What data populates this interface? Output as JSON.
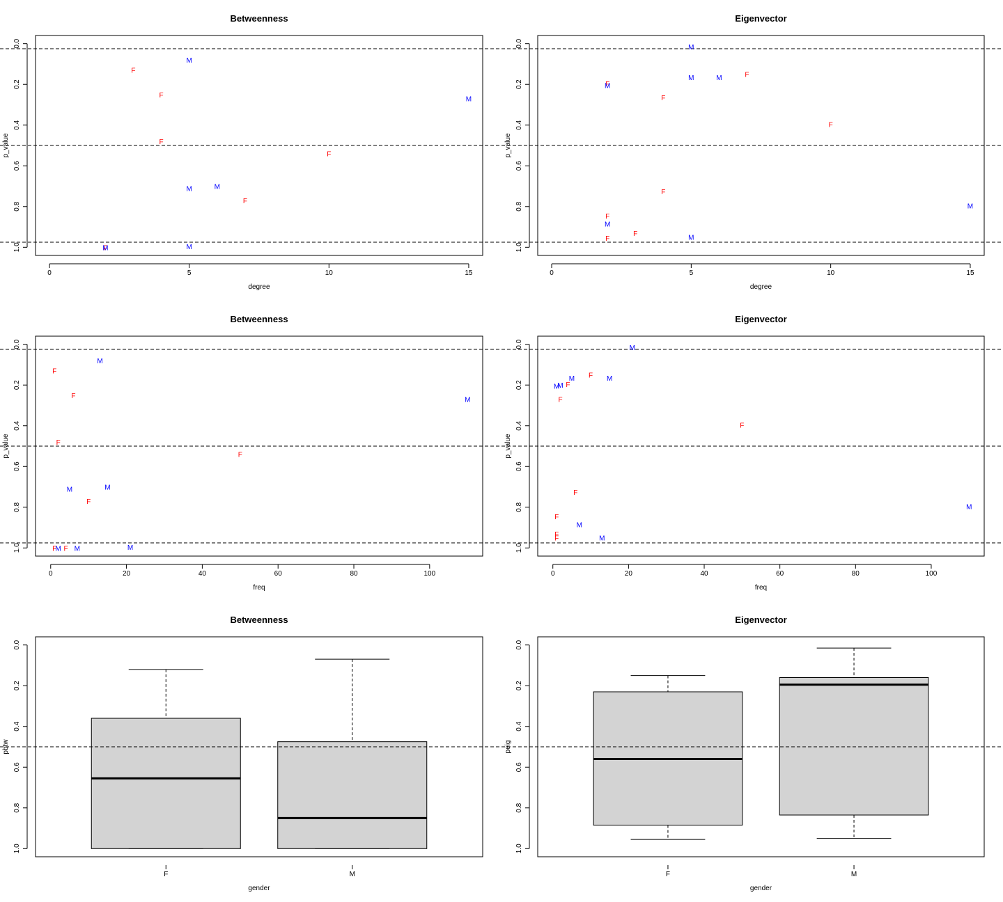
{
  "chart_data": [
    {
      "type": "scatter",
      "title": "Betweenness",
      "xlabel": "degree",
      "ylabel": "p_value",
      "xlim": [
        -0.5,
        15.5
      ],
      "ylim": [
        -0.04,
        1.04
      ],
      "y_reversed": true,
      "xticks": [
        0,
        5,
        10,
        15
      ],
      "yticks": [
        0.0,
        0.2,
        0.4,
        0.6,
        0.8,
        1.0
      ],
      "hlines": [
        0.025,
        0.5,
        0.975
      ],
      "points": [
        {
          "x": 5,
          "y": 0.08,
          "label": "M",
          "group": "M"
        },
        {
          "x": 3,
          "y": 0.13,
          "label": "F",
          "group": "F"
        },
        {
          "x": 4,
          "y": 0.25,
          "label": "F",
          "group": "F"
        },
        {
          "x": 15,
          "y": 0.27,
          "label": "M",
          "group": "M"
        },
        {
          "x": 4,
          "y": 0.48,
          "label": "F",
          "group": "F"
        },
        {
          "x": 10,
          "y": 0.54,
          "label": "F",
          "group": "F"
        },
        {
          "x": 6,
          "y": 0.7,
          "label": "M",
          "group": "M"
        },
        {
          "x": 5,
          "y": 0.71,
          "label": "M",
          "group": "M"
        },
        {
          "x": 7,
          "y": 0.77,
          "label": "F",
          "group": "F"
        },
        {
          "x": 2,
          "y": 1.0,
          "label": "F",
          "group": "F"
        },
        {
          "x": 2,
          "y": 1.0,
          "label": "M",
          "group": "M"
        },
        {
          "x": 5,
          "y": 0.995,
          "label": "M",
          "group": "M"
        }
      ]
    },
    {
      "type": "scatter",
      "title": "Eigenvector",
      "xlabel": "degree",
      "ylabel": "p_value",
      "xlim": [
        -0.5,
        15.5
      ],
      "ylim": [
        -0.04,
        1.04
      ],
      "y_reversed": true,
      "xticks": [
        0,
        5,
        10,
        15
      ],
      "yticks": [
        0.0,
        0.2,
        0.4,
        0.6,
        0.8,
        1.0
      ],
      "hlines": [
        0.025,
        0.5,
        0.975
      ],
      "points": [
        {
          "x": 5,
          "y": 0.015,
          "label": "M",
          "group": "M"
        },
        {
          "x": 7,
          "y": 0.15,
          "label": "F",
          "group": "F"
        },
        {
          "x": 5,
          "y": 0.165,
          "label": "M",
          "group": "M"
        },
        {
          "x": 6,
          "y": 0.165,
          "label": "M",
          "group": "M"
        },
        {
          "x": 2,
          "y": 0.195,
          "label": "F",
          "group": "F"
        },
        {
          "x": 2,
          "y": 0.205,
          "label": "M",
          "group": "M"
        },
        {
          "x": 4,
          "y": 0.265,
          "label": "F",
          "group": "F"
        },
        {
          "x": 10,
          "y": 0.395,
          "label": "F",
          "group": "F"
        },
        {
          "x": 4,
          "y": 0.725,
          "label": "F",
          "group": "F"
        },
        {
          "x": 15,
          "y": 0.795,
          "label": "M",
          "group": "M"
        },
        {
          "x": 2,
          "y": 0.845,
          "label": "F",
          "group": "F"
        },
        {
          "x": 2,
          "y": 0.885,
          "label": "M",
          "group": "M"
        },
        {
          "x": 3,
          "y": 0.93,
          "label": "F",
          "group": "F"
        },
        {
          "x": 2,
          "y": 0.955,
          "label": "F",
          "group": "F"
        },
        {
          "x": 5,
          "y": 0.95,
          "label": "M",
          "group": "M"
        }
      ]
    },
    {
      "type": "scatter",
      "title": "Betweenness",
      "xlabel": "freq",
      "ylabel": "p_value",
      "xlim": [
        -4,
        114
      ],
      "ylim": [
        -0.04,
        1.04
      ],
      "y_reversed": true,
      "xticks": [
        0,
        20,
        40,
        60,
        80,
        100
      ],
      "yticks": [
        0.0,
        0.2,
        0.4,
        0.6,
        0.8,
        1.0
      ],
      "hlines": [
        0.025,
        0.5,
        0.975
      ],
      "points": [
        {
          "x": 13,
          "y": 0.08,
          "label": "M",
          "group": "M"
        },
        {
          "x": 1,
          "y": 0.13,
          "label": "F",
          "group": "F"
        },
        {
          "x": 6,
          "y": 0.25,
          "label": "F",
          "group": "F"
        },
        {
          "x": 110,
          "y": 0.27,
          "label": "M",
          "group": "M"
        },
        {
          "x": 2,
          "y": 0.48,
          "label": "F",
          "group": "F"
        },
        {
          "x": 50,
          "y": 0.54,
          "label": "F",
          "group": "F"
        },
        {
          "x": 15,
          "y": 0.7,
          "label": "M",
          "group": "M"
        },
        {
          "x": 5,
          "y": 0.71,
          "label": "M",
          "group": "M"
        },
        {
          "x": 10,
          "y": 0.77,
          "label": "F",
          "group": "F"
        },
        {
          "x": 1,
          "y": 1.0,
          "label": "F",
          "group": "F"
        },
        {
          "x": 2,
          "y": 1.0,
          "label": "M",
          "group": "M"
        },
        {
          "x": 4,
          "y": 1.0,
          "label": "F",
          "group": "F"
        },
        {
          "x": 7,
          "y": 1.0,
          "label": "M",
          "group": "M"
        },
        {
          "x": 21,
          "y": 0.995,
          "label": "M",
          "group": "M"
        }
      ]
    },
    {
      "type": "scatter",
      "title": "Eigenvector",
      "xlabel": "freq",
      "ylabel": "p_value",
      "xlim": [
        -4,
        114
      ],
      "ylim": [
        -0.04,
        1.04
      ],
      "y_reversed": true,
      "xticks": [
        0,
        20,
        40,
        60,
        80,
        100
      ],
      "yticks": [
        0.0,
        0.2,
        0.4,
        0.6,
        0.8,
        1.0
      ],
      "hlines": [
        0.025,
        0.5,
        0.975
      ],
      "points": [
        {
          "x": 21,
          "y": 0.015,
          "label": "M",
          "group": "M"
        },
        {
          "x": 10,
          "y": 0.15,
          "label": "F",
          "group": "F"
        },
        {
          "x": 5,
          "y": 0.165,
          "label": "M",
          "group": "M"
        },
        {
          "x": 15,
          "y": 0.165,
          "label": "M",
          "group": "M"
        },
        {
          "x": 4,
          "y": 0.195,
          "label": "F",
          "group": "F"
        },
        {
          "x": 2,
          "y": 0.2,
          "label": "M",
          "group": "M"
        },
        {
          "x": 1,
          "y": 0.205,
          "label": "M",
          "group": "M"
        },
        {
          "x": 2,
          "y": 0.27,
          "label": "F",
          "group": "F"
        },
        {
          "x": 50,
          "y": 0.395,
          "label": "F",
          "group": "F"
        },
        {
          "x": 6,
          "y": 0.725,
          "label": "F",
          "group": "F"
        },
        {
          "x": 110,
          "y": 0.795,
          "label": "M",
          "group": "M"
        },
        {
          "x": 1,
          "y": 0.845,
          "label": "F",
          "group": "F"
        },
        {
          "x": 7,
          "y": 0.885,
          "label": "M",
          "group": "M"
        },
        {
          "x": 1,
          "y": 0.93,
          "label": "F",
          "group": "F"
        },
        {
          "x": 1,
          "y": 0.95,
          "label": "F",
          "group": "F"
        },
        {
          "x": 13,
          "y": 0.95,
          "label": "M",
          "group": "M"
        }
      ]
    },
    {
      "type": "boxplot",
      "title": "Betweenness",
      "xlabel": "gender",
      "ylabel": "pbtw",
      "categories": [
        "F",
        "M"
      ],
      "ylim": [
        -0.04,
        1.04
      ],
      "y_reversed": true,
      "yticks": [
        0.0,
        0.2,
        0.4,
        0.6,
        0.8,
        1.0
      ],
      "hlines": [
        0.5
      ],
      "boxes": [
        {
          "name": "F",
          "whisker_low": 0.12,
          "q1": 0.36,
          "median": 0.655,
          "q3": 1.0,
          "whisker_high": 1.0
        },
        {
          "name": "M",
          "whisker_low": 0.07,
          "q1": 0.475,
          "median": 0.85,
          "q3": 1.0,
          "whisker_high": 1.0
        }
      ]
    },
    {
      "type": "boxplot",
      "title": "Eigenvector",
      "xlabel": "gender",
      "ylabel": "peig",
      "categories": [
        "F",
        "M"
      ],
      "ylim": [
        -0.04,
        1.04
      ],
      "y_reversed": true,
      "yticks": [
        0.0,
        0.2,
        0.4,
        0.6,
        0.8,
        1.0
      ],
      "hlines": [
        0.5
      ],
      "boxes": [
        {
          "name": "F",
          "whisker_low": 0.15,
          "q1": 0.23,
          "median": 0.56,
          "q3": 0.885,
          "whisker_high": 0.955
        },
        {
          "name": "M",
          "whisker_low": 0.015,
          "q1": 0.16,
          "median": 0.195,
          "q3": 0.835,
          "whisker_high": 0.95
        }
      ]
    }
  ],
  "colors": {
    "F": "#ff0000",
    "M": "#0000ff",
    "box_fill": "#d3d3d3",
    "axis": "#000000"
  }
}
